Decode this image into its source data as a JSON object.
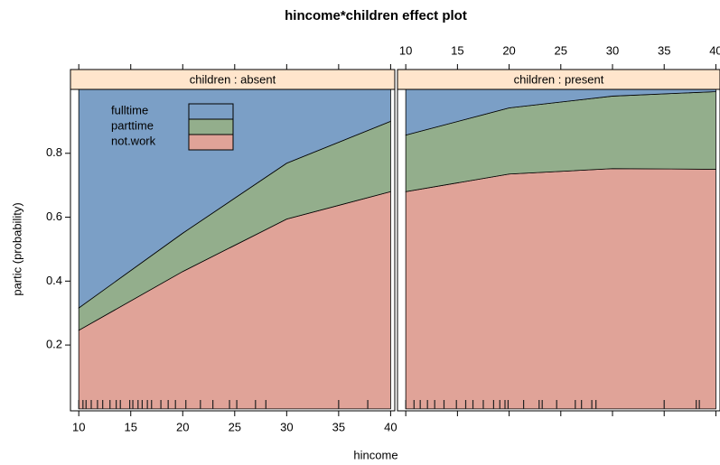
{
  "chart_data": {
    "type": "area",
    "title": "hincome*children effect plot",
    "xlabel": "hincome",
    "ylabel": "partic (probability)",
    "x": [
      10,
      20,
      30,
      40
    ],
    "xlim": [
      9.2,
      40.4
    ],
    "ylim": [
      -0.006,
      1.0
    ],
    "xticks": [
      10,
      15,
      20,
      25,
      30,
      35,
      40
    ],
    "yticks": [
      0.2,
      0.4,
      0.6,
      0.8
    ],
    "grid": false,
    "legend": "top-left",
    "panels": [
      {
        "title": "children : absent",
        "series": [
          {
            "name": "not.work",
            "color": "#e0a398",
            "values": [
              0.246,
              0.43,
              0.594,
              0.68
            ]
          },
          {
            "name": "parttime",
            "color": "#93ae8c",
            "values": [
              0.07,
              0.12,
              0.175,
              0.22
            ]
          },
          {
            "name": "fulltime",
            "color": "#7b9fc6",
            "values": [
              0.684,
              0.45,
              0.231,
              0.1
            ]
          }
        ],
        "rug": [
          10,
          10.4,
          10.7,
          11.2,
          11.8,
          12.3,
          13,
          13.6,
          14,
          14.9,
          15.2,
          15.7,
          16.1,
          16.6,
          17,
          17.9,
          18.6,
          19.3,
          20.3,
          21.7,
          22.9,
          24.5,
          25.2,
          27,
          28,
          35,
          37.8
        ]
      },
      {
        "title": "children : present",
        "series": [
          {
            "name": "not.work",
            "color": "#e0a398",
            "values": [
              0.68,
              0.735,
              0.752,
              0.75
            ]
          },
          {
            "name": "parttime",
            "color": "#93ae8c",
            "values": [
              0.177,
              0.207,
              0.227,
              0.243
            ]
          },
          {
            "name": "fulltime",
            "color": "#7b9fc6",
            "values": [
              0.143,
              0.058,
              0.021,
              0.007
            ]
          }
        ],
        "rug": [
          10,
          10.8,
          11.4,
          12.1,
          12.8,
          13.7,
          14.9,
          15.8,
          16.5,
          17.5,
          18.5,
          19.1,
          19.6,
          19.9,
          21.4,
          22.9,
          23.2,
          24.6,
          26.4,
          27,
          28,
          28.4,
          35,
          38.1,
          38.4
        ]
      }
    ]
  }
}
